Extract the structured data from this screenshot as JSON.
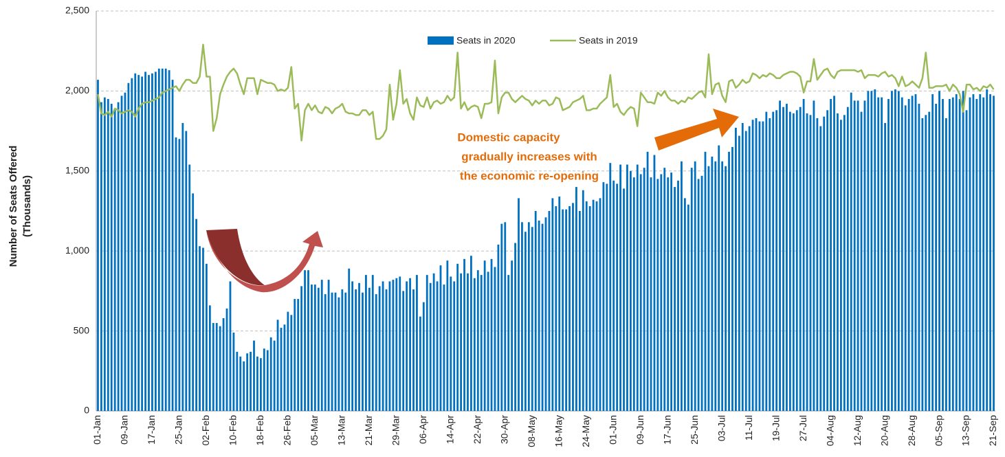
{
  "chart_data": {
    "type": "bar_line",
    "y_label": [
      "Number of Seats Offered",
      "(Thousands)"
    ],
    "annotation": [
      "Domestic capacity",
      "gradually increases with",
      "the economic re-opening"
    ],
    "ylim": [
      0,
      2500
    ],
    "yticks": [
      0,
      500,
      {
        "value": 1000,
        "label": "1,000"
      },
      {
        "value": 1500,
        "label": "1,500"
      },
      {
        "value": 2000,
        "label": "2,000"
      },
      {
        "value": 2500,
        "label": "2,500"
      }
    ],
    "grid": true,
    "legend": "top",
    "categories": [
      "01-Jan",
      null,
      null,
      null,
      null,
      null,
      null,
      null,
      "09-Jan",
      null,
      null,
      null,
      null,
      null,
      null,
      null,
      "17-Jan",
      null,
      null,
      null,
      null,
      null,
      null,
      null,
      "25-Jan",
      null,
      null,
      null,
      null,
      null,
      null,
      null,
      "02-Feb",
      null,
      null,
      null,
      null,
      null,
      null,
      null,
      "10-Feb",
      null,
      null,
      null,
      null,
      null,
      null,
      null,
      "18-Feb",
      null,
      null,
      null,
      null,
      null,
      null,
      null,
      "26-Feb",
      null,
      null,
      null,
      null,
      null,
      null,
      null,
      "05-Mar",
      null,
      null,
      null,
      null,
      null,
      null,
      null,
      "13-Mar",
      null,
      null,
      null,
      null,
      null,
      null,
      null,
      "21-Mar",
      null,
      null,
      null,
      null,
      null,
      null,
      null,
      "29-Mar",
      null,
      null,
      null,
      null,
      null,
      null,
      null,
      "06-Apr",
      null,
      null,
      null,
      null,
      null,
      null,
      null,
      "14-Apr",
      null,
      null,
      null,
      null,
      null,
      null,
      null,
      "22-Apr",
      null,
      null,
      null,
      null,
      null,
      null,
      null,
      "30-Apr",
      null,
      null,
      null,
      null,
      null,
      null,
      null,
      "08-May",
      null,
      null,
      null,
      null,
      null,
      null,
      null,
      "16-May",
      null,
      null,
      null,
      null,
      null,
      null,
      null,
      "24-May",
      null,
      null,
      null,
      null,
      null,
      null,
      null,
      "01-Jun",
      null,
      null,
      null,
      null,
      null,
      null,
      null,
      "09-Jun",
      null,
      null,
      null,
      null,
      null,
      null,
      null,
      "17-Jun",
      null,
      null,
      null,
      null,
      null,
      null,
      null,
      "25-Jun",
      null,
      null,
      null,
      null,
      null,
      null,
      null,
      "03-Jul",
      null,
      null,
      null,
      null,
      null,
      null,
      null,
      "11-Jul",
      null,
      null,
      null,
      null,
      null,
      null,
      null,
      "19-Jul",
      null,
      null,
      null,
      null,
      null,
      null,
      null,
      "27-Jul",
      null,
      null,
      null,
      null,
      null,
      null,
      null,
      "04-Aug",
      null,
      null,
      null,
      null,
      null,
      null,
      null,
      "12-Aug",
      null,
      null,
      null,
      null,
      null,
      null,
      null,
      "20-Aug",
      null,
      null,
      null,
      null,
      null,
      null,
      null,
      "28-Aug",
      null,
      null,
      null,
      null,
      null,
      null,
      null,
      "05-Sep",
      null,
      null,
      null,
      null,
      null,
      null,
      null,
      "13-Sep",
      null,
      null,
      null,
      null,
      null,
      null,
      null,
      "21-Sep"
    ],
    "series": [
      {
        "name": "Seats in 2020",
        "kind": "bar",
        "color": "#0070c0",
        "values": [
          2070,
          1930,
          1960,
          1950,
          1920,
          1890,
          1930,
          1970,
          1990,
          2050,
          2080,
          2110,
          2100,
          2090,
          2120,
          2100,
          2110,
          2120,
          2140,
          2140,
          2140,
          2130,
          2070,
          1710,
          1700,
          1800,
          1750,
          1540,
          1360,
          1200,
          1030,
          1020,
          920,
          660,
          550,
          550,
          530,
          580,
          640,
          810,
          490,
          370,
          340,
          310,
          360,
          370,
          440,
          340,
          330,
          390,
          380,
          460,
          440,
          570,
          520,
          540,
          620,
          600,
          700,
          700,
          780,
          880,
          880,
          790,
          790,
          770,
          820,
          730,
          820,
          740,
          740,
          710,
          760,
          740,
          890,
          810,
          760,
          800,
          740,
          850,
          770,
          850,
          730,
          780,
          810,
          760,
          810,
          820,
          830,
          840,
          750,
          810,
          830,
          760,
          850,
          590,
          680,
          850,
          800,
          860,
          810,
          910,
          790,
          940,
          840,
          810,
          920,
          860,
          950,
          860,
          970,
          830,
          880,
          850,
          940,
          870,
          950,
          900,
          1040,
          1170,
          1180,
          850,
          940,
          1050,
          1330,
          1180,
          1120,
          1180,
          1150,
          1250,
          1190,
          1170,
          1210,
          1250,
          1330,
          1280,
          1340,
          1260,
          1260,
          1280,
          1300,
          1400,
          1250,
          1380,
          1310,
          1280,
          1320,
          1310,
          1330,
          1430,
          1420,
          1550,
          1440,
          1420,
          1540,
          1390,
          1540,
          1500,
          1460,
          1540,
          1480,
          1520,
          1620,
          1460,
          1600,
          1450,
          1480,
          1520,
          1460,
          1490,
          1400,
          1440,
          1560,
          1330,
          1290,
          1520,
          1560,
          1450,
          1470,
          1620,
          1530,
          1590,
          1560,
          1660,
          1560,
          1530,
          1620,
          1650,
          1770,
          1720,
          1800,
          1750,
          1780,
          1820,
          1830,
          1810,
          1810,
          1870,
          1830,
          1870,
          1880,
          1940,
          1900,
          1920,
          1870,
          1860,
          1880,
          1900,
          1950,
          1860,
          1850,
          1940,
          1830,
          1780,
          1840,
          1880,
          1950,
          1970,
          1860,
          1820,
          1850,
          1900,
          1990,
          1940,
          1940,
          1870,
          1940,
          2000,
          2000,
          2010,
          1960,
          1960,
          1800,
          1950,
          2000,
          2010,
          2000,
          1960,
          1910,
          1950,
          1970,
          1980,
          1920,
          1830,
          1850,
          1870,
          1980,
          1920,
          2000,
          1950,
          1830,
          1950,
          1960,
          1980,
          1950,
          2000,
          1880,
          1960,
          1980,
          1950,
          1980,
          1960,
          2010,
          1980,
          1970
        ]
      },
      {
        "name": "Seats in 2019",
        "kind": "line",
        "color": "#9bbb59",
        "values": [
          1980,
          1860,
          1850,
          1870,
          1840,
          1890,
          1880,
          1860,
          1870,
          1880,
          1870,
          1840,
          1890,
          1920,
          1930,
          1930,
          1940,
          1950,
          1960,
          1990,
          2000,
          2010,
          2020,
          2030,
          2000,
          2040,
          2070,
          2070,
          2050,
          2050,
          2090,
          2290,
          2090,
          2090,
          1750,
          1830,
          1980,
          2040,
          2090,
          2120,
          2140,
          2110,
          2040,
          1980,
          2080,
          2080,
          2080,
          1980,
          2070,
          2060,
          2050,
          2050,
          2040,
          2000,
          2010,
          2000,
          2020,
          2150,
          1890,
          1920,
          1690,
          1880,
          1920,
          1880,
          1910,
          1870,
          1860,
          1900,
          1890,
          1860,
          1890,
          1900,
          1920,
          1870,
          1860,
          1860,
          1850,
          1850,
          1880,
          1880,
          1850,
          1870,
          1700,
          1700,
          1720,
          1760,
          2040,
          1820,
          1920,
          2130,
          1920,
          1950,
          1860,
          1820,
          1960,
          1910,
          1900,
          1960,
          1890,
          1930,
          1940,
          1920,
          1930,
          1970,
          1940,
          1960,
          2240,
          1890,
          1930,
          1880,
          1900,
          1910,
          1900,
          1830,
          1920,
          1920,
          1930,
          2190,
          1860,
          1960,
          1990,
          1990,
          1950,
          1930,
          1950,
          1970,
          1950,
          1940,
          1910,
          1940,
          1920,
          1940,
          1940,
          1910,
          1920,
          1960,
          1950,
          1880,
          1890,
          1900,
          1930,
          1940,
          1950,
          1970,
          1880,
          1880,
          1890,
          1890,
          1920,
          1940,
          1960,
          2100,
          1900,
          1920,
          1870,
          1850,
          1880,
          1900,
          1890,
          1780,
          1990,
          1960,
          1930,
          1930,
          1920,
          1990,
          1970,
          2000,
          1960,
          1940,
          1940,
          1920,
          1940,
          1930,
          1960,
          1950,
          1970,
          1990,
          2000,
          1960,
          2230,
          1980,
          2040,
          2050,
          1970,
          1930,
          2060,
          2070,
          2020,
          2040,
          2070,
          2050,
          2060,
          2110,
          2100,
          2080,
          2100,
          2090,
          2110,
          2100,
          2080,
          2080,
          2100,
          2110,
          2120,
          2120,
          2110,
          2090,
          1990,
          2060,
          2060,
          2200,
          2070,
          2100,
          2130,
          2140,
          2100,
          2080,
          2120,
          2130,
          2130,
          2130,
          2130,
          2130,
          2120,
          2130,
          2080,
          2100,
          2100,
          2100,
          2090,
          2110,
          2120,
          2090,
          2100,
          2080,
          2030,
          2090,
          2030,
          2040,
          2060,
          2040,
          2020,
          2080,
          2240,
          2020,
          2020,
          2030,
          2030,
          2030,
          2040,
          2000,
          2040,
          2020,
          1980,
          1870,
          2040,
          2040,
          2010,
          2020,
          2000,
          2030,
          2020,
          2040,
          2010
        ]
      }
    ]
  }
}
